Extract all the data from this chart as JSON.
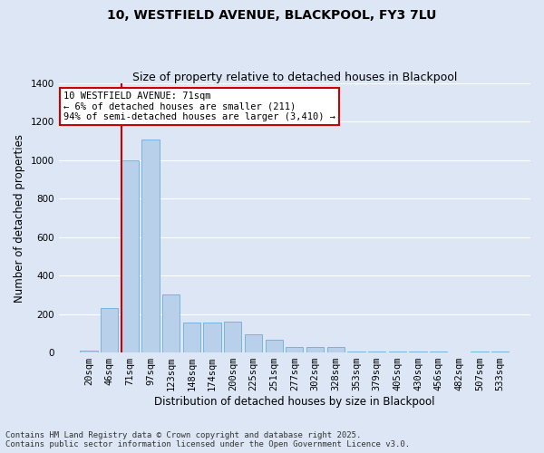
{
  "title": "10, WESTFIELD AVENUE, BLACKPOOL, FY3 7LU",
  "subtitle": "Size of property relative to detached houses in Blackpool",
  "xlabel": "Distribution of detached houses by size in Blackpool",
  "ylabel": "Number of detached properties",
  "annotation_title": "10 WESTFIELD AVENUE: 71sqm",
  "annotation_line2": "← 6% of detached houses are smaller (211)",
  "annotation_line3": "94% of semi-detached houses are larger (3,410) →",
  "categories": [
    "20sqm",
    "46sqm",
    "71sqm",
    "97sqm",
    "123sqm",
    "148sqm",
    "174sqm",
    "200sqm",
    "225sqm",
    "251sqm",
    "277sqm",
    "302sqm",
    "328sqm",
    "353sqm",
    "379sqm",
    "405sqm",
    "430sqm",
    "456sqm",
    "482sqm",
    "507sqm",
    "533sqm"
  ],
  "values": [
    10,
    230,
    1000,
    1110,
    300,
    155,
    155,
    160,
    95,
    65,
    30,
    30,
    30,
    5,
    5,
    5,
    5,
    5,
    0,
    5,
    5
  ],
  "bar_color": "#b8d0ea",
  "bar_edge_color": "#6aaed6",
  "vline_color": "#cc0000",
  "vline_index": 2,
  "annotation_box_color": "#cc0000",
  "annotation_fill": "#ffffff",
  "bg_color": "#dce6f5",
  "plot_bg_color": "#dce6f5",
  "ylim": [
    0,
    1400
  ],
  "yticks": [
    0,
    200,
    400,
    600,
    800,
    1000,
    1200,
    1400
  ],
  "grid_color": "#ffffff",
  "footer_line1": "Contains HM Land Registry data © Crown copyright and database right 2025.",
  "footer_line2": "Contains public sector information licensed under the Open Government Licence v3.0.",
  "title_fontsize": 10,
  "subtitle_fontsize": 9,
  "axis_label_fontsize": 8.5,
  "tick_fontsize": 7.5,
  "annotation_fontsize": 7.5,
  "footer_fontsize": 6.5
}
